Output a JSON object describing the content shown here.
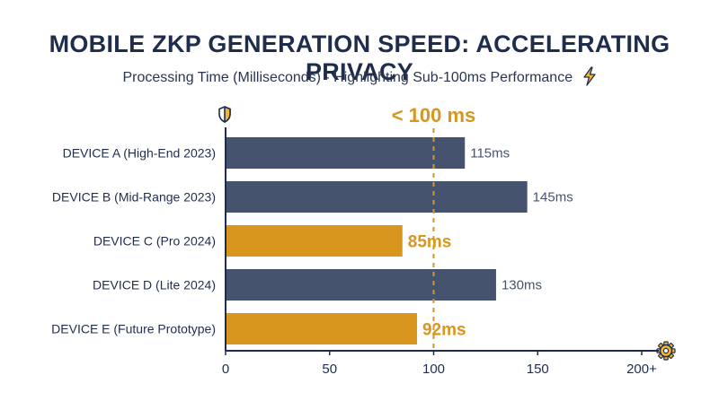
{
  "title": "MOBILE ZKP GENERATION SPEED: ACCELERATING PRIVACY",
  "subtitle": "Processing Time (Milliseconds) - Highlighting Sub-100ms Performance",
  "icons": {
    "subtitle_icon": "lightning-bolt-icon",
    "axis_top_icon": "shield-icon",
    "axis_end_icon": "gear-icon"
  },
  "colors": {
    "standard": "#46536f",
    "highlight": "#d9961e",
    "title": "#1f2d4d",
    "threshold": "#d9961e"
  },
  "chart_data": {
    "type": "bar",
    "orientation": "horizontal",
    "categories": [
      "DEVICE A (High-End 2023)",
      "DEVICE B (Mid-Range 2023)",
      "DEVICE C (Pro 2024)",
      "DEVICE D (Lite 2024)",
      "DEVICE E (Future Prototype)"
    ],
    "values": [
      115,
      145,
      85,
      130,
      92
    ],
    "data_labels": [
      "115ms",
      "145ms",
      "85ms",
      "130ms",
      "92ms"
    ],
    "highlighted": [
      false,
      false,
      true,
      false,
      true
    ],
    "xlim": [
      0,
      200
    ],
    "xticks": [
      0,
      50,
      100,
      150,
      200
    ],
    "xtick_labels": [
      "0",
      "50",
      "100",
      "150",
      "200+"
    ],
    "threshold": {
      "value": 100,
      "label": "< 100 ms"
    },
    "grid": false
  }
}
